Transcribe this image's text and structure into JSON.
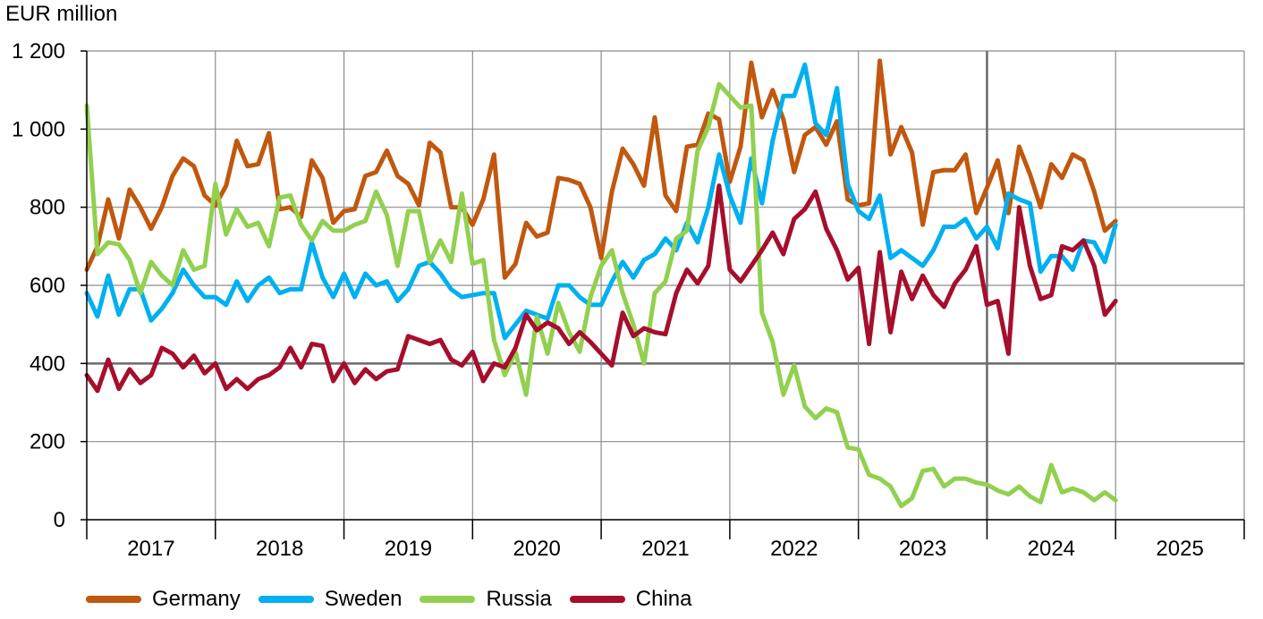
{
  "chart_data": {
    "type": "line",
    "ylabel": "EUR million",
    "ylim": [
      0,
      1200
    ],
    "yticks": [
      0,
      200,
      400,
      600,
      800,
      1000,
      1200
    ],
    "ytick_labels": [
      "0",
      "200",
      "400",
      "600",
      "800",
      "1 000",
      "1 200"
    ],
    "xlabels": [
      "2017",
      "2018",
      "2019",
      "2020",
      "2021",
      "2022",
      "2023",
      "2024",
      "2025"
    ],
    "x_start_year": 2017,
    "x_end_year": 2026,
    "grid": true,
    "legend_position": "bottom",
    "series": [
      {
        "name": "Germany",
        "color": "#C0580E",
        "values": [
          640,
          700,
          820,
          720,
          845,
          800,
          745,
          800,
          880,
          925,
          905,
          830,
          805,
          855,
          970,
          905,
          910,
          990,
          795,
          800,
          775,
          920,
          875,
          760,
          790,
          795,
          880,
          890,
          945,
          880,
          860,
          805,
          965,
          940,
          800,
          800,
          755,
          820,
          935,
          620,
          655,
          760,
          725,
          735,
          875,
          870,
          860,
          800,
          670,
          840,
          950,
          910,
          855,
          1030,
          830,
          790,
          955,
          960,
          1040,
          1025,
          865,
          955,
          1170,
          1030,
          1100,
          1025,
          890,
          985,
          1005,
          960,
          1020,
          820,
          805,
          810,
          1175,
          935,
          1005,
          940,
          755,
          890,
          895,
          895,
          935,
          785,
          850,
          920,
          785,
          955,
          885,
          800,
          910,
          875,
          935,
          920,
          840,
          740,
          765
        ]
      },
      {
        "name": "Sweden",
        "color": "#00B0F0",
        "values": [
          580,
          520,
          625,
          525,
          590,
          590,
          510,
          540,
          580,
          640,
          600,
          570,
          570,
          550,
          610,
          560,
          600,
          620,
          580,
          590,
          590,
          710,
          620,
          570,
          630,
          570,
          630,
          600,
          610,
          560,
          590,
          650,
          660,
          630,
          590,
          570,
          575,
          580,
          580,
          465,
          500,
          535,
          525,
          515,
          600,
          600,
          570,
          550,
          550,
          610,
          660,
          620,
          665,
          680,
          720,
          690,
          760,
          710,
          800,
          935,
          830,
          760,
          925,
          810,
          970,
          1085,
          1085,
          1165,
          1015,
          985,
          1105,
          860,
          790,
          770,
          830,
          670,
          690,
          670,
          650,
          690,
          750,
          750,
          770,
          720,
          750,
          695,
          835,
          820,
          810,
          635,
          675,
          675,
          640,
          715,
          710,
          660,
          755
        ]
      },
      {
        "name": "Russia",
        "color": "#92D050",
        "values": [
          1060,
          680,
          710,
          705,
          665,
          580,
          660,
          625,
          600,
          690,
          640,
          650,
          860,
          730,
          795,
          750,
          760,
          700,
          825,
          830,
          755,
          715,
          765,
          740,
          740,
          755,
          765,
          840,
          780,
          650,
          790,
          790,
          660,
          715,
          660,
          835,
          655,
          665,
          460,
          370,
          430,
          320,
          520,
          425,
          555,
          480,
          430,
          570,
          650,
          690,
          580,
          500,
          400,
          580,
          610,
          720,
          740,
          945,
          1005,
          1115,
          1085,
          1055,
          1060,
          530,
          455,
          320,
          395,
          290,
          260,
          285,
          275,
          185,
          180,
          115,
          105,
          85,
          35,
          55,
          125,
          130,
          85,
          105,
          105,
          95,
          90,
          75,
          65,
          85,
          60,
          45,
          140,
          70,
          80,
          70,
          50,
          70,
          50
        ]
      },
      {
        "name": "China",
        "color": "#A50F2D",
        "values": [
          370,
          330,
          410,
          335,
          385,
          350,
          370,
          440,
          425,
          390,
          420,
          375,
          400,
          335,
          360,
          335,
          360,
          370,
          390,
          440,
          390,
          450,
          445,
          355,
          400,
          350,
          385,
          360,
          380,
          385,
          470,
          460,
          450,
          460,
          410,
          395,
          430,
          355,
          400,
          390,
          440,
          525,
          485,
          505,
          490,
          450,
          480,
          455,
          425,
          395,
          530,
          470,
          490,
          480,
          475,
          580,
          640,
          605,
          650,
          855,
          640,
          610,
          650,
          690,
          735,
          680,
          770,
          795,
          840,
          745,
          690,
          615,
          645,
          450,
          685,
          480,
          635,
          565,
          625,
          575,
          545,
          605,
          640,
          700,
          550,
          560,
          425,
          800,
          650,
          565,
          575,
          700,
          690,
          715,
          650,
          525,
          560
        ]
      }
    ]
  },
  "legend": {
    "items": [
      {
        "label": "Germany",
        "color": "#C0580E"
      },
      {
        "label": "Sweden",
        "color": "#00B0F0"
      },
      {
        "label": "Russia",
        "color": "#92D050"
      },
      {
        "label": "China",
        "color": "#A50F2D"
      }
    ]
  }
}
